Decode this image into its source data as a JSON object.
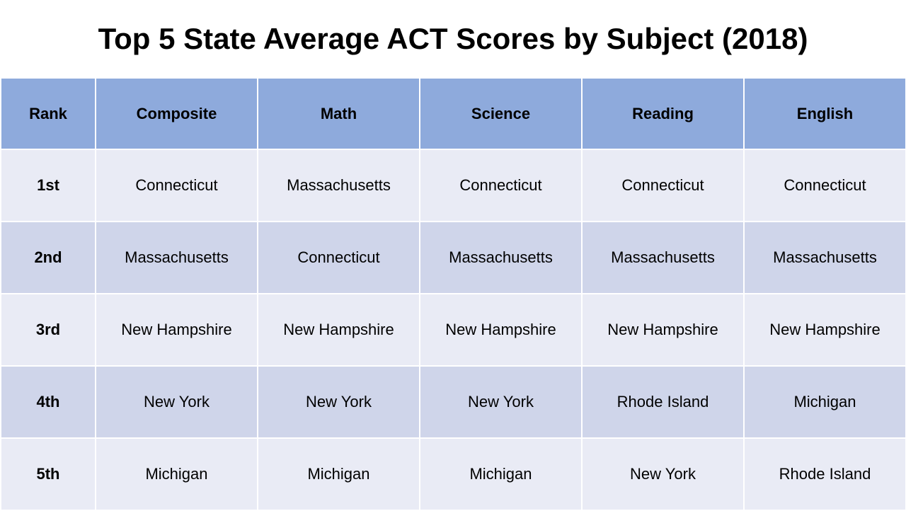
{
  "title": "Top 5 State Average ACT Scores by Subject (2018)",
  "colors": {
    "header_fill": "#8eaadc",
    "row_light": "#e9ebf5",
    "row_dark": "#cfd5ea",
    "border": "#ffffff",
    "text": "#000000"
  },
  "chart_data": {
    "type": "table",
    "title": "Top 5 State Average ACT Scores by Subject (2018)",
    "columns": [
      "Rank",
      "Composite",
      "Math",
      "Science",
      "Reading",
      "English"
    ],
    "rows": [
      [
        "1st",
        "Connecticut",
        "Massachusetts",
        "Connecticut",
        "Connecticut",
        "Connecticut"
      ],
      [
        "2nd",
        "Massachusetts",
        "Connecticut",
        "Massachusetts",
        "Massachusetts",
        "Massachusetts"
      ],
      [
        "3rd",
        "New Hampshire",
        "New Hampshire",
        "New Hampshire",
        "New Hampshire",
        "New Hampshire"
      ],
      [
        "4th",
        "New York",
        "New York",
        "New York",
        "Rhode Island",
        "Michigan"
      ],
      [
        "5th",
        "Michigan",
        "Michigan",
        "Michigan",
        "New York",
        "Rhode Island"
      ]
    ]
  }
}
